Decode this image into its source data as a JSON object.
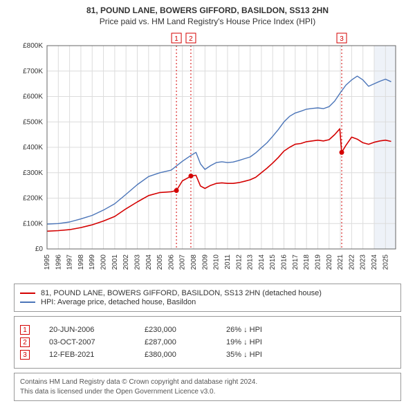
{
  "title_line1": "81, POUND LANE, BOWERS GIFFORD, BASILDON, SS13 2HN",
  "title_line2": "Price paid vs. HM Land Registry's House Price Index (HPI)",
  "title_fontsize": 12,
  "chart": {
    "type": "line",
    "background_color": "#ffffff",
    "grid_color": "#dcdcdc",
    "axis_color": "#666666",
    "band_color": "#eef2f8",
    "band_x_start": 2024.0,
    "band_x_end": 2025.9,
    "xlim": [
      1995,
      2025.9
    ],
    "ylim": [
      0,
      800000
    ],
    "ytick_step": 100000,
    "yticks": [
      "£0",
      "£100K",
      "£200K",
      "£300K",
      "£400K",
      "£500K",
      "£600K",
      "£700K",
      "£800K"
    ],
    "xticks": [
      1995,
      1996,
      1997,
      1998,
      1999,
      2000,
      2001,
      2002,
      2003,
      2004,
      2005,
      2006,
      2007,
      2008,
      2009,
      2010,
      2011,
      2012,
      2013,
      2014,
      2015,
      2016,
      2017,
      2018,
      2019,
      2020,
      2021,
      2022,
      2023,
      2024,
      2025
    ],
    "label_fontsize": 10,
    "series": [
      {
        "name": "property",
        "label": "81, POUND LANE, BOWERS GIFFORD, BASILDON, SS13 2HN (detached house)",
        "color": "#d40000",
        "line_width": 1.6,
        "data": [
          [
            1995,
            70000
          ],
          [
            1996,
            72000
          ],
          [
            1997,
            76000
          ],
          [
            1998,
            84000
          ],
          [
            1999,
            95000
          ],
          [
            2000,
            110000
          ],
          [
            2001,
            128000
          ],
          [
            2002,
            158000
          ],
          [
            2003,
            185000
          ],
          [
            2004,
            210000
          ],
          [
            2005,
            222000
          ],
          [
            2006,
            225000
          ],
          [
            2006.47,
            230000
          ],
          [
            2007,
            268000
          ],
          [
            2007.5,
            280000
          ],
          [
            2007.75,
            287000
          ],
          [
            2008.2,
            290000
          ],
          [
            2008.6,
            248000
          ],
          [
            2009,
            238000
          ],
          [
            2009.5,
            250000
          ],
          [
            2010,
            258000
          ],
          [
            2010.5,
            260000
          ],
          [
            2011,
            258000
          ],
          [
            2011.5,
            258000
          ],
          [
            2012,
            261000
          ],
          [
            2012.5,
            266000
          ],
          [
            2013,
            272000
          ],
          [
            2013.5,
            282000
          ],
          [
            2014,
            300000
          ],
          [
            2014.5,
            318000
          ],
          [
            2015,
            338000
          ],
          [
            2015.5,
            360000
          ],
          [
            2016,
            385000
          ],
          [
            2016.5,
            400000
          ],
          [
            2017,
            412000
          ],
          [
            2017.5,
            415000
          ],
          [
            2018,
            422000
          ],
          [
            2018.5,
            425000
          ],
          [
            2019,
            428000
          ],
          [
            2019.5,
            425000
          ],
          [
            2020,
            430000
          ],
          [
            2020.5,
            450000
          ],
          [
            2020.95,
            473000
          ],
          [
            2021.12,
            380000
          ],
          [
            2021.5,
            408000
          ],
          [
            2022,
            440000
          ],
          [
            2022.5,
            432000
          ],
          [
            2023,
            418000
          ],
          [
            2023.5,
            412000
          ],
          [
            2024,
            420000
          ],
          [
            2024.5,
            425000
          ],
          [
            2025,
            428000
          ],
          [
            2025.5,
            423000
          ]
        ]
      },
      {
        "name": "hpi",
        "label": "HPI: Average price, detached house, Basildon",
        "color": "#4a74b8",
        "line_width": 1.4,
        "data": [
          [
            1995,
            98000
          ],
          [
            1996,
            100000
          ],
          [
            1997,
            106000
          ],
          [
            1998,
            118000
          ],
          [
            1999,
            132000
          ],
          [
            2000,
            153000
          ],
          [
            2001,
            178000
          ],
          [
            2002,
            215000
          ],
          [
            2003,
            253000
          ],
          [
            2004,
            285000
          ],
          [
            2005,
            300000
          ],
          [
            2006,
            310000
          ],
          [
            2007,
            345000
          ],
          [
            2007.75,
            368000
          ],
          [
            2008.2,
            380000
          ],
          [
            2008.6,
            335000
          ],
          [
            2009,
            313000
          ],
          [
            2009.5,
            328000
          ],
          [
            2010,
            340000
          ],
          [
            2010.5,
            343000
          ],
          [
            2011,
            340000
          ],
          [
            2011.5,
            342000
          ],
          [
            2012,
            348000
          ],
          [
            2012.5,
            355000
          ],
          [
            2013,
            362000
          ],
          [
            2013.5,
            378000
          ],
          [
            2014,
            398000
          ],
          [
            2014.5,
            418000
          ],
          [
            2015,
            443000
          ],
          [
            2015.5,
            470000
          ],
          [
            2016,
            500000
          ],
          [
            2016.5,
            522000
          ],
          [
            2017,
            535000
          ],
          [
            2017.5,
            542000
          ],
          [
            2018,
            550000
          ],
          [
            2018.5,
            553000
          ],
          [
            2019,
            555000
          ],
          [
            2019.5,
            552000
          ],
          [
            2020,
            560000
          ],
          [
            2020.5,
            582000
          ],
          [
            2021,
            615000
          ],
          [
            2021.5,
            645000
          ],
          [
            2022,
            665000
          ],
          [
            2022.5,
            680000
          ],
          [
            2023,
            665000
          ],
          [
            2023.5,
            640000
          ],
          [
            2024,
            650000
          ],
          [
            2024.5,
            660000
          ],
          [
            2025,
            668000
          ],
          [
            2025.5,
            658000
          ]
        ]
      }
    ],
    "event_markers": [
      {
        "num": "1",
        "x": 2006.47,
        "y": 230000,
        "color": "#d40000"
      },
      {
        "num": "2",
        "x": 2007.75,
        "y": 287000,
        "color": "#d40000"
      },
      {
        "num": "3",
        "x": 2021.12,
        "y": 380000,
        "color": "#d40000"
      }
    ]
  },
  "legend": {
    "items": [
      {
        "color": "#d40000",
        "text": "81, POUND LANE, BOWERS GIFFORD, BASILDON, SS13 2HN (detached house)"
      },
      {
        "color": "#4a74b8",
        "text": "HPI: Average price, detached house, Basildon"
      }
    ]
  },
  "events_table": {
    "rows": [
      {
        "num": "1",
        "color": "#d40000",
        "date": "20-JUN-2006",
        "price": "£230,000",
        "delta": "26% ↓ HPI"
      },
      {
        "num": "2",
        "color": "#d40000",
        "date": "03-OCT-2007",
        "price": "£287,000",
        "delta": "19% ↓ HPI"
      },
      {
        "num": "3",
        "color": "#d40000",
        "date": "12-FEB-2021",
        "price": "£380,000",
        "delta": "35% ↓ HPI"
      }
    ]
  },
  "footnote_line1": "Contains HM Land Registry data © Crown copyright and database right 2024.",
  "footnote_line2": "This data is licensed under the Open Government Licence v3.0."
}
